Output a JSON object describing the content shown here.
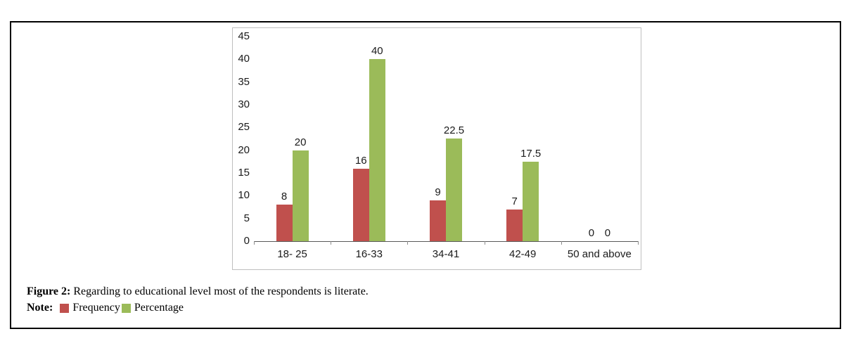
{
  "chart_data": {
    "type": "bar",
    "categories": [
      "18- 25",
      "16-33",
      "34-41",
      "42-49",
      "50 and above"
    ],
    "series": [
      {
        "name": "Frequency",
        "color": "#c0504d",
        "values": [
          8,
          16,
          9,
          7,
          0
        ]
      },
      {
        "name": "Percentage",
        "color": "#9bbb59",
        "values": [
          20,
          40,
          22.5,
          17.5,
          0
        ]
      }
    ],
    "title": "",
    "xlabel": "",
    "ylabel": "",
    "ylim": [
      0,
      45
    ],
    "ytick_step": 5,
    "grid": false,
    "legend_position": "below-figure-note-line",
    "value_labels": true
  },
  "caption": {
    "label": "Figure 2:",
    "text": "Regarding to educational level most of the respondents is literate."
  },
  "note": {
    "label": "Note:",
    "legend": [
      {
        "name": "Frequency",
        "color": "#c0504d"
      },
      {
        "name": "Percentage",
        "color": "#9bbb59"
      }
    ]
  }
}
